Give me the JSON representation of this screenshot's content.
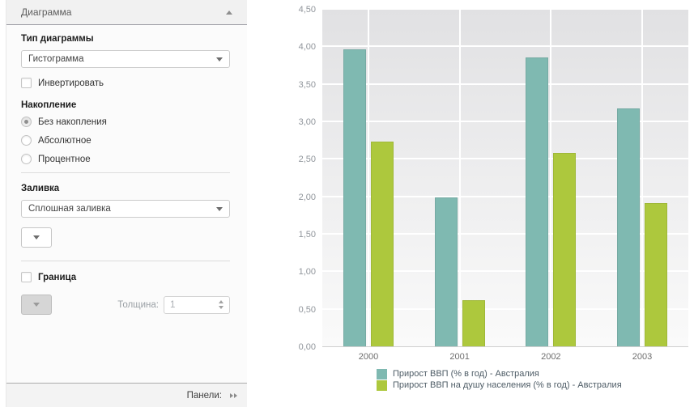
{
  "sidebar": {
    "header": {
      "title": "Диаграмма"
    },
    "chart_type": {
      "label": "Тип диаграммы",
      "value": "Гистограмма"
    },
    "invert": {
      "label": "Инвертировать",
      "checked": false
    },
    "stacking": {
      "label": "Накопление",
      "options": [
        {
          "label": "Без накопления",
          "selected": true
        },
        {
          "label": "Абсолютное",
          "selected": false
        },
        {
          "label": "Процентное",
          "selected": false
        }
      ]
    },
    "fill": {
      "label": "Заливка",
      "value": "Сплошная заливка"
    },
    "border": {
      "label": "Граница",
      "checked": false,
      "thickness_label": "Толщина:",
      "thickness_value": "1"
    },
    "footer": {
      "label": "Панели:"
    }
  },
  "chart_data": {
    "type": "bar",
    "categories": [
      "2000",
      "2001",
      "2002",
      "2003"
    ],
    "series": [
      {
        "name": "Прирост ВВП (% в год) - Австралия",
        "color": "#7fb9b1",
        "values": [
          3.96,
          1.99,
          3.85,
          3.17
        ]
      },
      {
        "name": "Прирост ВВП на душу населения (% в год) - Австралия",
        "color": "#adc83d",
        "values": [
          2.73,
          0.62,
          2.58,
          1.91
        ]
      }
    ],
    "title": "",
    "xlabel": "",
    "ylabel": "",
    "ylim": [
      0,
      4.5
    ],
    "ytick_step": 0.5,
    "ytick_labels": [
      "0,00",
      "0,50",
      "1,00",
      "1,50",
      "2,00",
      "2,50",
      "3,00",
      "3,50",
      "4,00",
      "4,50"
    ],
    "grid": true,
    "legend_position": "bottom",
    "plot_bg_top": "#e1e1e3",
    "plot_bg_bottom": "#fafafa"
  }
}
